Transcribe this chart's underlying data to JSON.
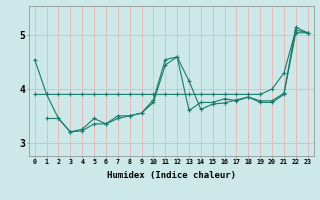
{
  "title": "",
  "xlabel": "Humidex (Indice chaleur)",
  "bg_color": "#cce8e8",
  "grid_color": "#e8b4b4",
  "line_color": "#1a7a6a",
  "xlim": [
    -0.5,
    23.5
  ],
  "ylim": [
    2.75,
    5.55
  ],
  "yticks": [
    3,
    4,
    5
  ],
  "xtick_labels": [
    "0",
    "1",
    "2",
    "3",
    "4",
    "5",
    "6",
    "7",
    "8",
    "9",
    "10",
    "11",
    "12",
    "13",
    "14",
    "15",
    "16",
    "17",
    "18",
    "19",
    "20",
    "21",
    "22",
    "23"
  ],
  "series": [
    {
      "x": [
        0,
        1,
        2,
        3,
        4,
        5,
        6,
        7,
        8,
        9,
        10,
        11,
        12,
        13,
        14,
        15,
        16,
        17,
        18,
        19,
        20,
        21,
        22,
        23
      ],
      "y": [
        4.55,
        3.9,
        3.45,
        3.2,
        3.25,
        3.45,
        3.35,
        3.45,
        3.5,
        3.55,
        3.8,
        4.55,
        4.6,
        3.6,
        3.75,
        3.75,
        3.82,
        3.78,
        3.85,
        3.78,
        3.78,
        3.92,
        5.15,
        5.05
      ]
    },
    {
      "x": [
        1,
        2,
        3,
        4,
        5,
        6,
        7,
        8,
        9,
        10,
        11,
        12,
        13,
        14,
        15,
        16,
        17,
        18,
        19,
        20,
        21,
        22,
        23
      ],
      "y": [
        3.45,
        3.45,
        3.2,
        3.22,
        3.35,
        3.35,
        3.5,
        3.5,
        3.55,
        3.75,
        4.45,
        4.6,
        4.15,
        3.62,
        3.72,
        3.74,
        3.8,
        3.85,
        3.75,
        3.75,
        3.9,
        5.05,
        5.05
      ]
    },
    {
      "x": [
        0,
        1,
        2,
        3,
        4,
        5,
        6,
        7,
        8,
        9,
        10,
        11,
        12,
        13,
        14,
        15,
        16,
        17,
        18,
        19,
        20,
        21,
        22,
        23
      ],
      "y": [
        3.9,
        3.9,
        3.9,
        3.9,
        3.9,
        3.9,
        3.9,
        3.9,
        3.9,
        3.9,
        3.9,
        3.9,
        3.9,
        3.9,
        3.9,
        3.9,
        3.9,
        3.9,
        3.9,
        3.9,
        4.0,
        4.3,
        5.1,
        5.05
      ]
    }
  ]
}
